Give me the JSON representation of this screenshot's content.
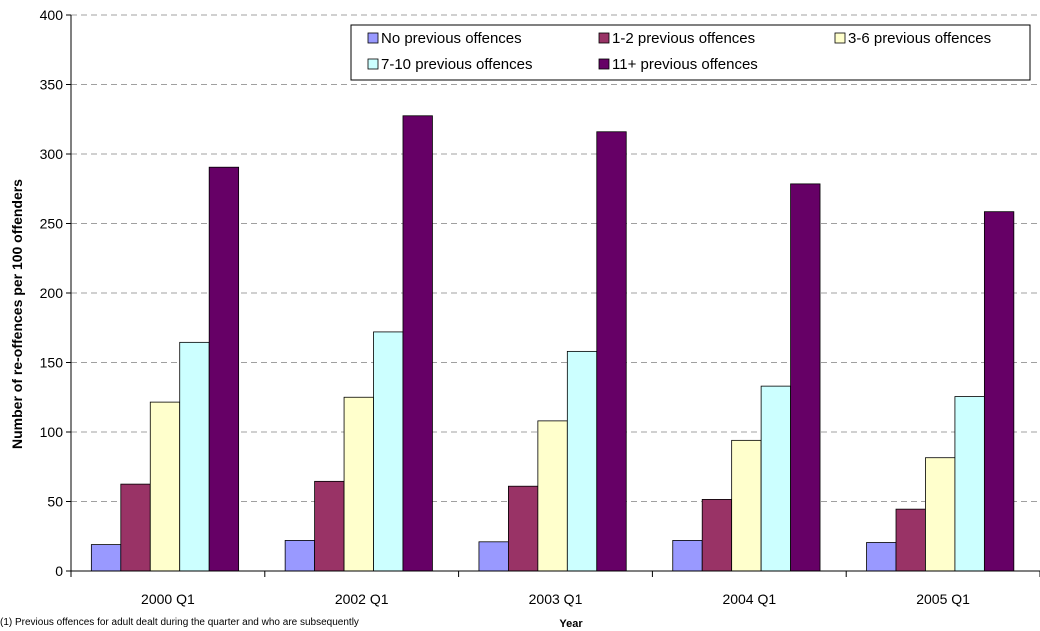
{
  "chart_data": {
    "type": "bar",
    "title": "",
    "xlabel": "Year",
    "ylabel": "Number of re-offences per 100 offenders",
    "categories": [
      "2000 Q1",
      "2002 Q1",
      "2003 Q1",
      "2004 Q1",
      "2005 Q1"
    ],
    "ylim": [
      0,
      400
    ],
    "yticks": [
      0,
      50,
      100,
      150,
      200,
      250,
      300,
      350,
      400
    ],
    "grid": true,
    "legend_position": "top-right",
    "series": [
      {
        "name": "No previous offences",
        "color": "#9999ff",
        "values": [
          19,
          22,
          21,
          22,
          20.5
        ]
      },
      {
        "name": "1-2 previous offences",
        "color": "#993366",
        "values": [
          62.5,
          64.5,
          61,
          51.5,
          44.5
        ]
      },
      {
        "name": "3-6 previous offences",
        "color": "#ffffcc",
        "values": [
          121.5,
          125,
          108,
          94,
          81.5
        ]
      },
      {
        "name": "7-10 previous offences",
        "color": "#ccffff",
        "values": [
          164.5,
          172,
          158,
          133,
          125.5
        ]
      },
      {
        "name": "11+ previous offences",
        "color": "#660066",
        "values": [
          290.5,
          327.5,
          316,
          278.5,
          258.5
        ]
      }
    ]
  },
  "footnote": "(1) Previous offences for adult dealt during the quarter and who are subsequently"
}
